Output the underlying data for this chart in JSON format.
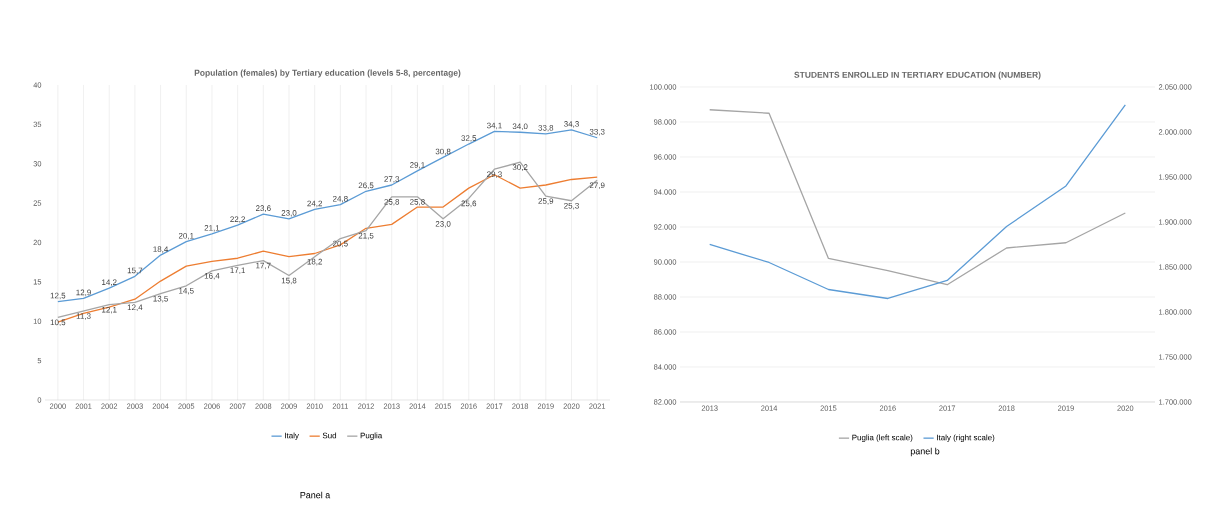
{
  "chart_data": [
    {
      "type": "line",
      "title": "Population (females) by Tertiary  education (levels 5-8, percentage)",
      "categories": [
        "2000",
        "2001",
        "2002",
        "2003",
        "2004",
        "2005",
        "2006",
        "2007",
        "2008",
        "2009",
        "2010",
        "2011",
        "2012",
        "2013",
        "2014",
        "2015",
        "2016",
        "2017",
        "2018",
        "2019",
        "2020",
        "2021"
      ],
      "series": [
        {
          "name": "Italy",
          "color": "#5b9bd5",
          "values": [
            12.5,
            12.9,
            14.2,
            15.7,
            18.4,
            20.1,
            21.1,
            22.2,
            23.6,
            23.0,
            24.2,
            24.8,
            26.5,
            27.3,
            29.1,
            30.8,
            32.5,
            34.1,
            34.0,
            33.8,
            34.3,
            33.3
          ],
          "value_labels": [
            "12,5",
            "12,9",
            "14,2",
            "15,7",
            "18,4",
            "20,1",
            "21,1",
            "22,2",
            "23,6",
            "23,0",
            "24,2",
            "24,8",
            "26,5",
            "27,3",
            "29,1",
            "30,8",
            "32,5",
            "34,1",
            "34,0",
            "33,8",
            "34,3",
            "33,3"
          ]
        },
        {
          "name": "Sud",
          "color": "#ed7d31",
          "values": [
            9.9,
            11.0,
            11.8,
            12.8,
            15.1,
            17.0,
            17.6,
            18.0,
            18.9,
            18.2,
            18.6,
            19.7,
            21.8,
            22.3,
            24.5,
            24.5,
            26.9,
            28.6,
            26.9,
            27.3,
            28.0,
            28.3
          ]
        },
        {
          "name": "Puglia",
          "color": "#a5a5a5",
          "values": [
            10.5,
            11.3,
            12.1,
            12.4,
            13.5,
            14.5,
            16.4,
            17.1,
            17.7,
            15.8,
            18.2,
            20.5,
            21.5,
            25.8,
            25.8,
            23.0,
            25.6,
            29.3,
            30.2,
            25.9,
            25.3,
            27.9
          ],
          "value_labels": [
            "10,5",
            "11,3",
            "12,1",
            "12,4",
            "13,5",
            "14,5",
            "16,4",
            "17,1",
            "17,7",
            "15,8",
            "18,2",
            "20,5",
            "21,5",
            "25,8",
            "25,8",
            "23,0",
            "25,6",
            "29,3",
            "30,2",
            "25,9",
            "25,3",
            "27,9"
          ]
        }
      ],
      "ylim": [
        0,
        40
      ],
      "yticks": [
        0,
        5,
        10,
        15,
        20,
        25,
        30,
        35,
        40
      ],
      "grid": "x",
      "legend": "bottom",
      "annotations": [
        "Panel a"
      ]
    },
    {
      "type": "line",
      "title": "STUDENTS ENROLLED IN TERTIARY EDUCATION (NUMBER)",
      "categories": [
        "2013",
        "2014",
        "2015",
        "2016",
        "2017",
        "2018",
        "2019",
        "2020"
      ],
      "series": [
        {
          "name": "Puglia (left scale)",
          "color": "#a5a5a5",
          "values": [
            98700,
            98500,
            90200,
            89500,
            88700,
            90800,
            91100,
            92800
          ]
        },
        {
          "name": "Italy (right scale)",
          "color": "#5b9bd5",
          "axis": "y2",
          "values": [
            1875000,
            1855000,
            1825000,
            1815000,
            1835000,
            1895000,
            1940000,
            2030000
          ]
        }
      ],
      "ylim": [
        82000,
        100000
      ],
      "yticks": [
        {
          "value": 82000,
          "label": "82.000"
        },
        {
          "value": 84000,
          "label": "84.000"
        },
        {
          "value": 86000,
          "label": "86.000"
        },
        {
          "value": 88000,
          "label": "88.000"
        },
        {
          "value": 90000,
          "label": "90.000"
        },
        {
          "value": 92000,
          "label": "92.000"
        },
        {
          "value": 94000,
          "label": "94.000"
        },
        {
          "value": 96000,
          "label": "96.000"
        },
        {
          "value": 98000,
          "label": "98.000"
        },
        {
          "value": 100000,
          "label": "100.000"
        }
      ],
      "y2lim": [
        1700000,
        2050000
      ],
      "y2ticks": [
        {
          "value": 1700000,
          "label": "1.700.000"
        },
        {
          "value": 1750000,
          "label": "1.750.000"
        },
        {
          "value": 1800000,
          "label": "1.800.000"
        },
        {
          "value": 1850000,
          "label": "1.850.000"
        },
        {
          "value": 1900000,
          "label": "1.900.000"
        },
        {
          "value": 1950000,
          "label": "1.950.000"
        },
        {
          "value": 2000000,
          "label": "2.000.000"
        },
        {
          "value": 2050000,
          "label": "2.050.000"
        }
      ],
      "grid": "y",
      "legend": "bottom",
      "annotations": [
        "panel b"
      ]
    }
  ]
}
